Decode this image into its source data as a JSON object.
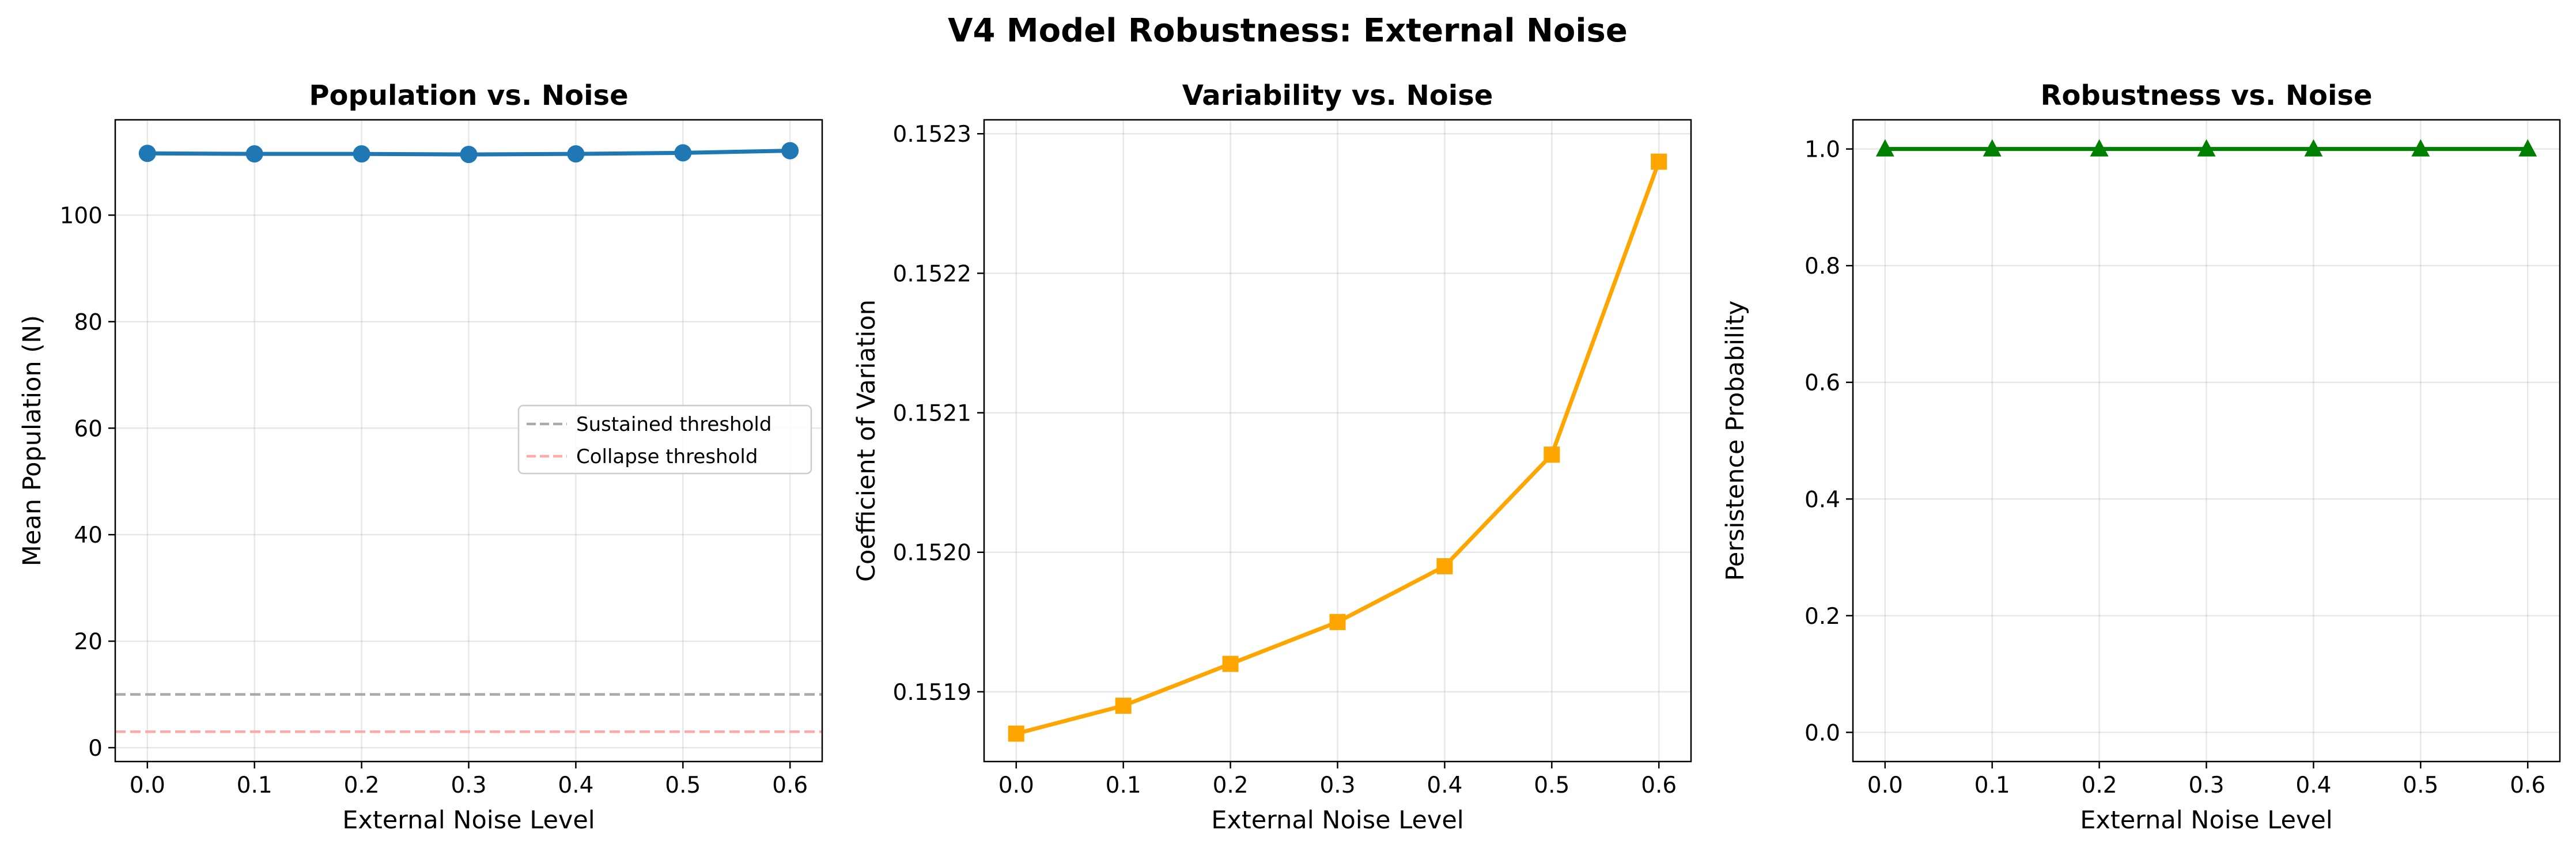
{
  "suptitle": "V4 Model Robustness: External Noise",
  "chart_data": [
    {
      "type": "line",
      "title": "Population vs. Noise",
      "xlabel": "External Noise Level",
      "ylabel": "Mean Population (N)",
      "x": [
        0.0,
        0.1,
        0.2,
        0.3,
        0.4,
        0.5,
        0.6
      ],
      "xlim": [
        -0.03,
        0.63
      ],
      "ylim": [
        -2.6,
        117.9
      ],
      "xticks": [
        0.0,
        0.1,
        0.2,
        0.3,
        0.4,
        0.5,
        0.6
      ],
      "xtick_labels": [
        "0.0",
        "0.1",
        "0.2",
        "0.3",
        "0.4",
        "0.5",
        "0.6"
      ],
      "yticks": [
        0,
        20,
        40,
        60,
        80,
        100
      ],
      "ytick_labels": [
        "0",
        "20",
        "40",
        "60",
        "80",
        "100"
      ],
      "grid": true,
      "legend_position": "center-right",
      "series": [
        {
          "values": [
            111.6,
            111.5,
            111.5,
            111.4,
            111.5,
            111.7,
            112.1
          ],
          "color": "#1f77b4",
          "marker": "circle"
        }
      ],
      "reference_lines": [
        {
          "name": "Sustained threshold",
          "y": 10,
          "color": "#aaaaaa",
          "style": "dashed"
        },
        {
          "name": "Collapse threshold",
          "y": 3,
          "color": "#ffaaaa",
          "style": "dashed"
        }
      ]
    },
    {
      "type": "line",
      "title": "Variability vs. Noise",
      "xlabel": "External Noise Level",
      "ylabel": "Coefficient of Variation",
      "x": [
        0.0,
        0.1,
        0.2,
        0.3,
        0.4,
        0.5,
        0.6
      ],
      "xlim": [
        -0.03,
        0.63
      ],
      "ylim": [
        0.15185,
        0.15231
      ],
      "xticks": [
        0.0,
        0.1,
        0.2,
        0.3,
        0.4,
        0.5,
        0.6
      ],
      "xtick_labels": [
        "0.0",
        "0.1",
        "0.2",
        "0.3",
        "0.4",
        "0.5",
        "0.6"
      ],
      "yticks": [
        0.1519,
        0.152,
        0.1521,
        0.1522,
        0.1523
      ],
      "ytick_labels": [
        "0.1519",
        "0.1520",
        "0.1521",
        "0.1522",
        "0.1523"
      ],
      "grid": true,
      "series": [
        {
          "values": [
            0.15187,
            0.15189,
            0.15192,
            0.15195,
            0.15199,
            0.15207,
            0.15228
          ],
          "color": "#ffa500",
          "marker": "square"
        }
      ]
    },
    {
      "type": "line",
      "title": "Robustness vs. Noise",
      "xlabel": "External Noise Level",
      "ylabel": "Persistence Probability",
      "x": [
        0.0,
        0.1,
        0.2,
        0.3,
        0.4,
        0.5,
        0.6
      ],
      "xlim": [
        -0.03,
        0.63
      ],
      "ylim": [
        -0.05,
        1.05
      ],
      "xticks": [
        0.0,
        0.1,
        0.2,
        0.3,
        0.4,
        0.5,
        0.6
      ],
      "xtick_labels": [
        "0.0",
        "0.1",
        "0.2",
        "0.3",
        "0.4",
        "0.5",
        "0.6"
      ],
      "yticks": [
        0.0,
        0.2,
        0.4,
        0.6,
        0.8,
        1.0
      ],
      "ytick_labels": [
        "0.0",
        "0.2",
        "0.4",
        "0.6",
        "0.8",
        "1.0"
      ],
      "grid": true,
      "series": [
        {
          "values": [
            1.0,
            1.0,
            1.0,
            1.0,
            1.0,
            1.0,
            1.0
          ],
          "color": "#008000",
          "marker": "triangle"
        }
      ]
    }
  ]
}
